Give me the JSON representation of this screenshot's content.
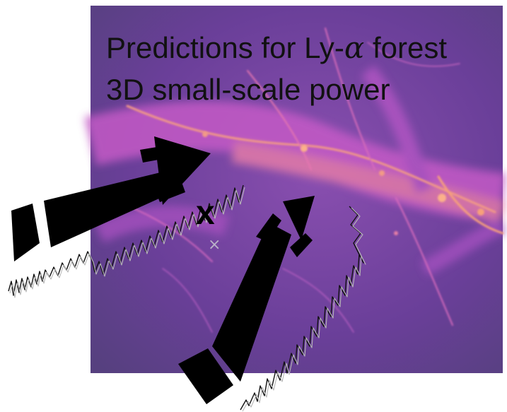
{
  "title": {
    "line1_prefix": "Predictions for Ly-",
    "line1_symbol": "α",
    "line1_suffix": " forest",
    "line2": "3D small-scale power"
  },
  "markers": {
    "bold_x": "x",
    "small_cross": "×"
  },
  "colors": {
    "background_dark": "#5a3b8c",
    "filament_mid": "#c058c8",
    "filament_bright": "#f7a07a",
    "arrows": "#000000"
  }
}
